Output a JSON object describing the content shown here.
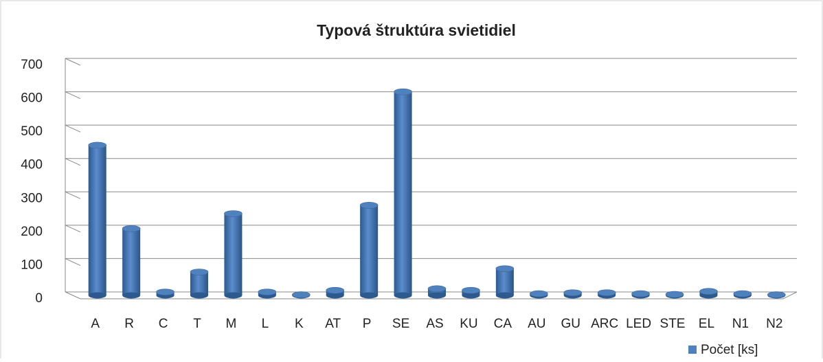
{
  "chart_data": {
    "type": "bar",
    "title": "Typová štruktúra svietidiel",
    "categories": [
      "A",
      "R",
      "C",
      "T",
      "M",
      "L",
      "K",
      "AT",
      "P",
      "SE",
      "AS",
      "KU",
      "CA",
      "AU",
      "GU",
      "ARC",
      "LED",
      "STE",
      "EL",
      "N1",
      "N2"
    ],
    "series": [
      {
        "name": "Počet [ks]",
        "color": "#4f81bd",
        "values": [
          450,
          200,
          10,
          70,
          245,
          10,
          2,
          15,
          270,
          610,
          20,
          15,
          80,
          5,
          8,
          8,
          5,
          3,
          12,
          5,
          2
        ]
      }
    ],
    "ylim": [
      0,
      700
    ],
    "yticks": [
      0,
      100,
      200,
      300,
      400,
      500,
      600,
      700
    ],
    "grid": true,
    "legend": "bottom-right"
  }
}
